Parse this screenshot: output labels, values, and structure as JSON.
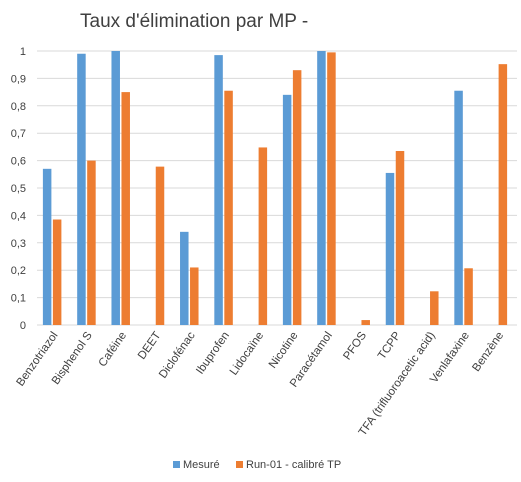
{
  "chart_data": {
    "type": "bar",
    "title": "Taux d'élimination par MP -",
    "xlabel": "",
    "ylabel": "",
    "ylim": [
      0,
      1
    ],
    "yticks": [
      "0",
      "0,1",
      "0,2",
      "0,3",
      "0,4",
      "0,5",
      "0,6",
      "0,7",
      "0,8",
      "0,9",
      "1"
    ],
    "grid": true,
    "legend_position": "bottom",
    "categories": [
      "Benzotriazol",
      "Bisphenol S",
      "Caféine",
      "DEET",
      "Diclofénac",
      "Ibuprofen",
      "Lidocaïne",
      "Nicotine",
      "Paracétamol",
      "PFOS",
      "TCPP",
      "TFA (trifluoroacetic acid)",
      "Venlafaxine",
      "Benzène"
    ],
    "series": [
      {
        "name": "Mesuré",
        "color": "#5B9BD5",
        "values": [
          0.57,
          0.99,
          1.0,
          null,
          0.34,
          0.985,
          null,
          0.84,
          1.0,
          null,
          0.555,
          null,
          0.855,
          null
        ]
      },
      {
        "name": "Run-01 - calibré TP",
        "color": "#ED7D31",
        "values": [
          0.385,
          0.6,
          0.85,
          0.578,
          0.21,
          0.855,
          0.648,
          0.93,
          0.995,
          0.018,
          0.635,
          0.123,
          0.207,
          0.952
        ]
      }
    ],
    "colors": {
      "grid": "#d9d9d9",
      "text": "#404040"
    }
  }
}
